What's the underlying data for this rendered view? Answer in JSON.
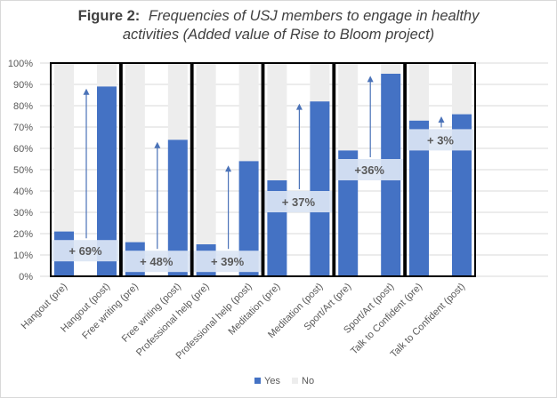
{
  "chart_data": {
    "type": "bar",
    "title": {
      "prefix": "Figure 2:",
      "line1": "Frequencies of USJ members to engage in healthy",
      "line2": "activities (Added value of Rise to Bloom project)"
    },
    "categories": [
      "Hangout (pre)",
      "Hangout (post)",
      "Free writing (pre)",
      "Free writing (post)",
      "Professional help (pre)",
      "Professional help (post)",
      "Meditation (pre)",
      "Meditation (post)",
      "Sport/Art (pre)",
      "Sport/Art (post)",
      "Talk to Confident (pre)",
      "Talk to Confident (post)"
    ],
    "series": [
      {
        "name": "Yes",
        "color": "#4472c4",
        "values": [
          21,
          89,
          16,
          64,
          15,
          54,
          45,
          82,
          59,
          95,
          73,
          76
        ]
      },
      {
        "name": "No",
        "color": "#ededed",
        "values": [
          79,
          11,
          84,
          36,
          85,
          46,
          55,
          18,
          41,
          5,
          27,
          24
        ]
      }
    ],
    "stacked": true,
    "ylim": [
      0,
      100
    ],
    "ytick_labels": [
      "0%",
      "10%",
      "20%",
      "30%",
      "40%",
      "50%",
      "60%",
      "70%",
      "80%",
      "90%",
      "100%"
    ],
    "grid": true,
    "legend_position": "bottom",
    "annotations": [
      {
        "label": "+ 69%",
        "from": 21,
        "to": 89,
        "highlight": [
          7,
          17
        ],
        "arrow_top": 88
      },
      {
        "label": "+ 48%",
        "from": 16,
        "to": 64,
        "highlight": [
          2,
          12
        ],
        "arrow_top": 63
      },
      {
        "label": "+ 39%",
        "from": 15,
        "to": 54,
        "highlight": [
          2,
          12
        ],
        "arrow_top": 52
      },
      {
        "label": "+ 37%",
        "from": 45,
        "to": 82,
        "highlight": [
          30,
          40
        ],
        "arrow_top": 81
      },
      {
        "label": "+36%",
        "from": 59,
        "to": 95,
        "highlight": [
          45,
          55
        ],
        "arrow_top": 94
      },
      {
        "label": "+ 3%",
        "from": 73,
        "to": 76,
        "highlight": [
          59,
          69
        ],
        "arrow_top": 75
      }
    ],
    "colors": {
      "yes": "#4472c4",
      "no": "#ededed",
      "highlight": "#dbe5f4",
      "arrow": "#4a72b8",
      "text": "#595959",
      "title": "#404040",
      "grid": "#d9d9d9"
    }
  }
}
